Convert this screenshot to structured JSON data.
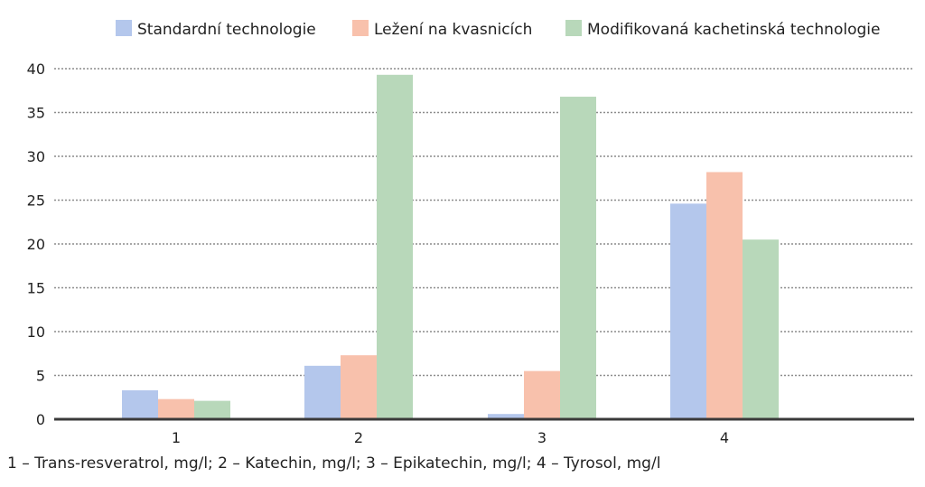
{
  "chart_data": {
    "type": "bar",
    "categories": [
      "1",
      "2",
      "3",
      "4"
    ],
    "series": [
      {
        "name": "Standardní technologie",
        "color": "#b4c7ec",
        "values": [
          3.3,
          6.1,
          0.6,
          24.6
        ]
      },
      {
        "name": "Ležení na kvasnicích",
        "color": "#f8c1ac",
        "values": [
          2.3,
          7.3,
          5.5,
          28.2
        ]
      },
      {
        "name": "Modifikovaná kachetinská technologie",
        "color": "#b8d8ba",
        "values": [
          2.1,
          39.3,
          36.8,
          20.5
        ]
      }
    ],
    "ylim": [
      0,
      40
    ],
    "yticks": [
      0,
      5,
      10,
      15,
      20,
      25,
      30,
      35,
      40
    ],
    "grid": true,
    "legend_position": "top",
    "caption": "1 – Trans-resveratrol, mg/l; 2 – Katechin, mg/l; 3 – Epikatechin, mg/l; 4 – Tyrosol, mg/l"
  }
}
